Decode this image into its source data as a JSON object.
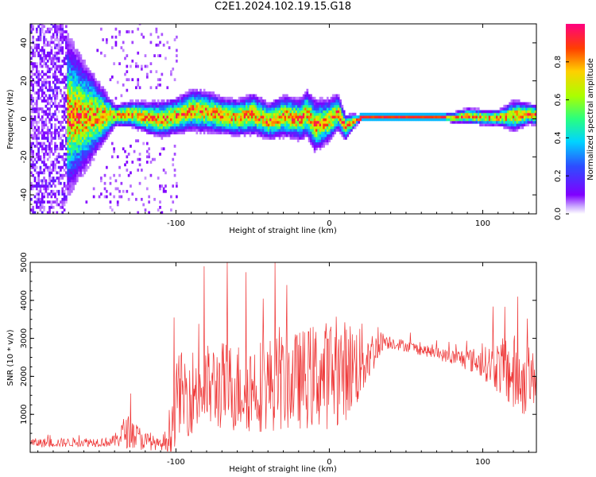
{
  "title": "C2E1.2024.102.19.15.G18",
  "colors": {
    "snr_line": "#ee3333",
    "frame": "#000000",
    "colormap": [
      "#ffffff",
      "#8000ff",
      "#2d4dff",
      "#00d4ff",
      "#29ff7f",
      "#aaff00",
      "#ffd000",
      "#ff4000",
      "#ff0080"
    ]
  },
  "chart_data": [
    {
      "type": "heatmap",
      "xlabel": "Height of straight line (km)",
      "ylabel": "Frequency (Hz)",
      "xlim": [
        -195,
        135
      ],
      "ylim": [
        -50,
        50
      ],
      "x_ticks": [
        -100,
        0,
        100
      ],
      "y_ticks": [
        -40,
        -20,
        0,
        20,
        40
      ],
      "grid": false,
      "colorbar": {
        "label": "Normalized spectral amplitude",
        "range": [
          0.0,
          1.0
        ],
        "ticks": [
          0.0,
          0.2,
          0.4,
          0.6,
          0.8
        ]
      },
      "ridge": {
        "x": [
          -195,
          -140,
          -130,
          -120,
          -110,
          -100,
          -90,
          -80,
          -70,
          -60,
          -50,
          -40,
          -30,
          -20,
          -15,
          -10,
          -5,
          0,
          5,
          10,
          15,
          20,
          30,
          40,
          50,
          60,
          70,
          80,
          90,
          100,
          110,
          120,
          130,
          135
        ],
        "frequency": [
          0,
          1,
          2,
          0,
          -1,
          1,
          4,
          3,
          1,
          0,
          2,
          -2,
          1,
          -1,
          2,
          -4,
          -3,
          -1,
          3,
          -5,
          -2,
          0,
          0,
          0,
          0,
          0,
          0,
          0,
          1,
          0,
          0,
          1,
          2,
          1
        ],
        "spread": [
          50,
          4,
          5,
          6,
          7,
          7,
          8,
          8,
          7,
          7,
          8,
          7,
          8,
          8,
          9,
          10,
          9,
          8,
          7,
          5,
          3,
          1,
          1,
          1,
          1,
          1,
          1,
          2,
          3,
          3,
          3,
          6,
          4,
          4
        ]
      }
    },
    {
      "type": "line",
      "xlabel": "Height of straight line (km)",
      "ylabel": "SNR (10 * v/v)",
      "xlim": [
        -195,
        135
      ],
      "ylim": [
        0,
        5000
      ],
      "x_ticks": [
        -100,
        0,
        100
      ],
      "y_ticks": [
        1000,
        2000,
        3000,
        4000,
        5000
      ],
      "grid": false,
      "series": [
        {
          "x": [
            -195,
            -180,
            -160,
            -145,
            -140,
            -135,
            -130,
            -125,
            -120,
            -115,
            -110,
            -106,
            -102,
            -98,
            -95,
            -90,
            -80,
            -70,
            -60,
            -50,
            -40,
            -30,
            -20,
            -10,
            0,
            10,
            20,
            30,
            35,
            40,
            50,
            60,
            70,
            80,
            90,
            100,
            110,
            115,
            120,
            125,
            130,
            135
          ],
          "values": [
            250,
            250,
            270,
            270,
            300,
            500,
            550,
            400,
            300,
            250,
            200,
            300,
            900,
            1600,
            1500,
            1600,
            1700,
            1750,
            1700,
            1750,
            1800,
            1850,
            1900,
            2000,
            2050,
            2150,
            2350,
            2700,
            2950,
            2900,
            2800,
            2700,
            2600,
            2500,
            2450,
            2350,
            2250,
            2150,
            2050,
            1900,
            1850,
            2000
          ],
          "noise_amplitude": [
            120,
            120,
            120,
            130,
            160,
            400,
            450,
            350,
            250,
            200,
            120,
            400,
            900,
            1100,
            1100,
            1150,
            1150,
            1200,
            1200,
            1250,
            1250,
            1300,
            1300,
            1400,
            1450,
            1350,
            1100,
            450,
            250,
            180,
            150,
            150,
            150,
            200,
            300,
            400,
            700,
            900,
            1100,
            1000,
            800,
            700
          ]
        }
      ]
    }
  ]
}
